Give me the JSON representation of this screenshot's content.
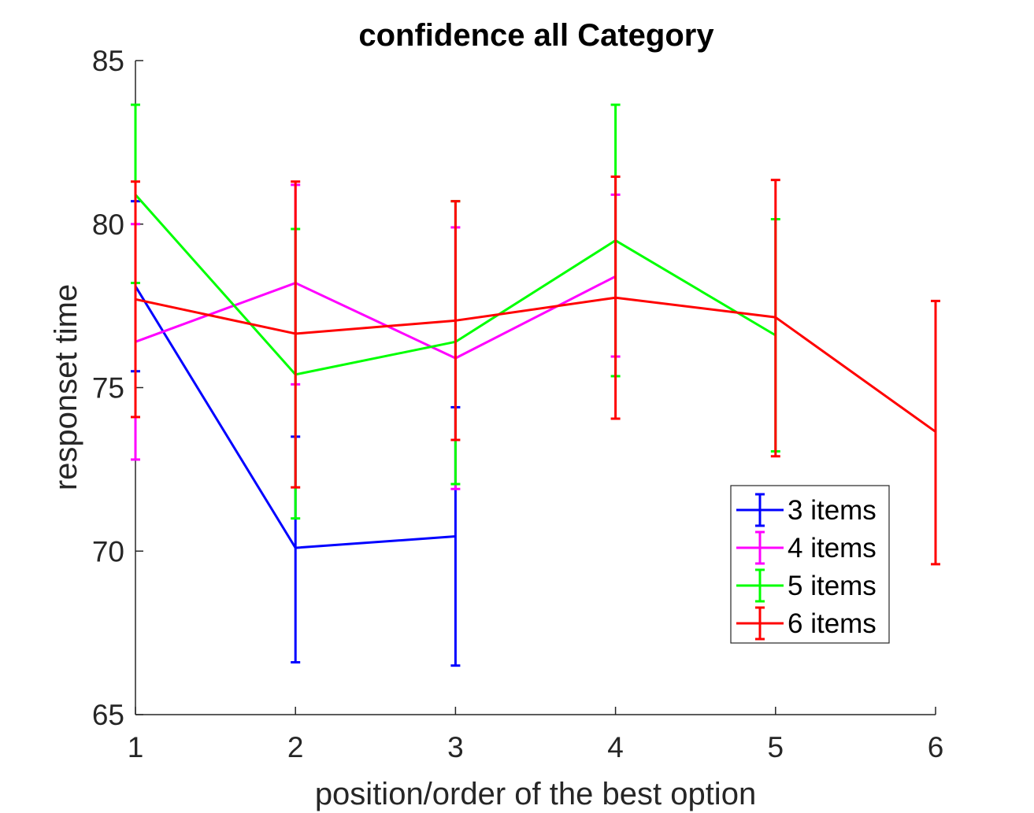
{
  "chart_data": {
    "type": "line",
    "title": "confidence all Category",
    "xlabel": "position/order of the best option",
    "ylabel": "responset time",
    "xlim": [
      1,
      6
    ],
    "ylim": [
      65,
      85
    ],
    "xticks": [
      1,
      2,
      3,
      4,
      5,
      6
    ],
    "yticks": [
      65,
      70,
      75,
      80,
      85
    ],
    "grid": false,
    "legend_position": "bottom-right",
    "error_bars": true,
    "series": [
      {
        "name": "3 items",
        "color": "#0000ff",
        "points": [
          {
            "x": 1,
            "y": 78.1,
            "lower": 75.5,
            "upper": 80.7
          },
          {
            "x": 2,
            "y": 70.1,
            "lower": 66.6,
            "upper": 73.5
          },
          {
            "x": 3,
            "y": 70.45,
            "lower": 66.5,
            "upper": 74.4
          }
        ]
      },
      {
        "name": "4 items",
        "color": "#ff00ff",
        "points": [
          {
            "x": 1,
            "y": 76.4,
            "lower": 72.8,
            "upper": 80.0
          },
          {
            "x": 2,
            "y": 78.2,
            "lower": 75.1,
            "upper": 81.2
          },
          {
            "x": 3,
            "y": 75.9,
            "lower": 71.9,
            "upper": 79.9
          },
          {
            "x": 4,
            "y": 78.4,
            "lower": 75.95,
            "upper": 80.9
          }
        ]
      },
      {
        "name": "5 items",
        "color": "#00ff00",
        "points": [
          {
            "x": 1,
            "y": 80.9,
            "lower": 78.2,
            "upper": 83.65
          },
          {
            "x": 2,
            "y": 75.4,
            "lower": 71.0,
            "upper": 79.85
          },
          {
            "x": 3,
            "y": 76.4,
            "lower": 72.05,
            "upper": 80.7
          },
          {
            "x": 4,
            "y": 79.5,
            "lower": 75.35,
            "upper": 83.65
          },
          {
            "x": 5,
            "y": 76.6,
            "lower": 73.05,
            "upper": 80.15
          }
        ]
      },
      {
        "name": "6 items",
        "color": "#ff0000",
        "points": [
          {
            "x": 1,
            "y": 77.7,
            "lower": 74.1,
            "upper": 81.3
          },
          {
            "x": 2,
            "y": 76.65,
            "lower": 71.95,
            "upper": 81.3
          },
          {
            "x": 3,
            "y": 77.05,
            "lower": 73.4,
            "upper": 80.7
          },
          {
            "x": 4,
            "y": 77.75,
            "lower": 74.05,
            "upper": 81.45
          },
          {
            "x": 5,
            "y": 77.15,
            "lower": 72.9,
            "upper": 81.35
          },
          {
            "x": 6,
            "y": 73.65,
            "lower": 69.6,
            "upper": 77.65
          }
        ]
      }
    ]
  }
}
